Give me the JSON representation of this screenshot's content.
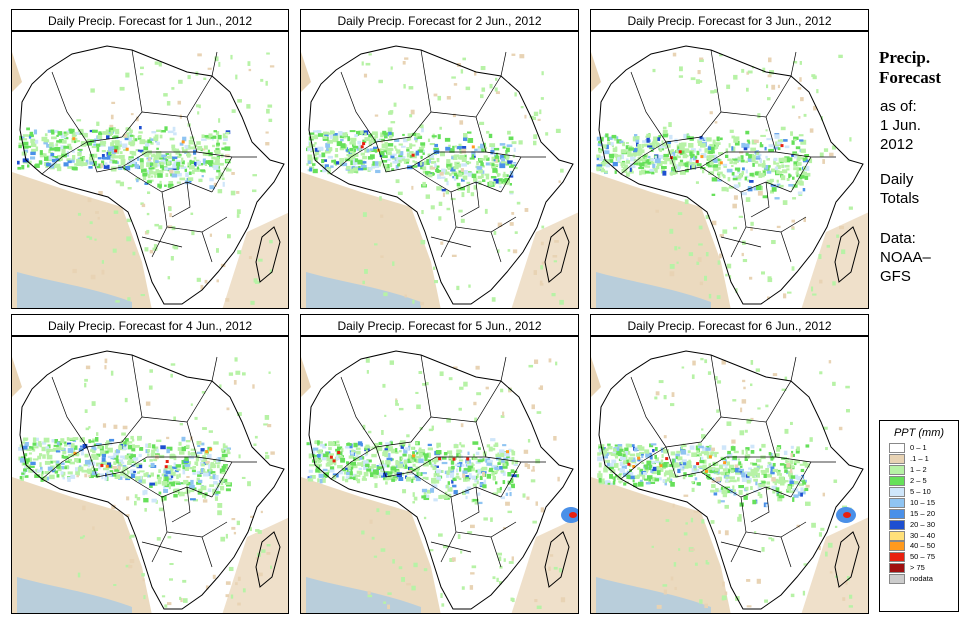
{
  "panels": [
    {
      "title": "Daily Precip. Forecast for  1 Jun., 2012",
      "day": 1
    },
    {
      "title": "Daily Precip. Forecast for  2 Jun., 2012",
      "day": 2
    },
    {
      "title": "Daily Precip. Forecast for  3 Jun., 2012",
      "day": 3
    },
    {
      "title": "Daily Precip. Forecast for  4 Jun., 2012",
      "day": 4
    },
    {
      "title": "Daily Precip. Forecast for  5 Jun., 2012",
      "day": 5
    },
    {
      "title": "Daily Precip. Forecast for  6 Jun., 2012",
      "day": 6
    }
  ],
  "side": {
    "title_line1": "Precip.",
    "title_line2": "Forecast",
    "asof_line1": "as of:",
    "asof_line2": "1 Jun.",
    "asof_line3": "2012",
    "totals_line1": "Daily",
    "totals_line2": "Totals",
    "data_line1": "Data:",
    "data_line2": "NOAA–",
    "data_line3": "GFS"
  },
  "legend": {
    "title": "PPT (mm)",
    "items": [
      {
        "label": "0 – 1",
        "color": "#ffffff"
      },
      {
        "label": ".1 – 1",
        "color": "#e8d3b4"
      },
      {
        "label": "1 – 2",
        "color": "#b7f2a6"
      },
      {
        "label": "2 – 5",
        "color": "#66e05a"
      },
      {
        "label": "5 – 10",
        "color": "#cfe6fa"
      },
      {
        "label": "10 – 15",
        "color": "#8fc4f2"
      },
      {
        "label": "15 – 20",
        "color": "#4a90e8"
      },
      {
        "label": "20 – 30",
        "color": "#1e4fd0"
      },
      {
        "label": "30 – 40",
        "color": "#ffe07a"
      },
      {
        "label": "40 – 50",
        "color": "#ff9a1e"
      },
      {
        "label": "50 – 75",
        "color": "#e82010"
      },
      {
        "label": "> 75",
        "color": "#a01010"
      },
      {
        "label": "nodata",
        "color": "#cccccc"
      }
    ]
  }
}
